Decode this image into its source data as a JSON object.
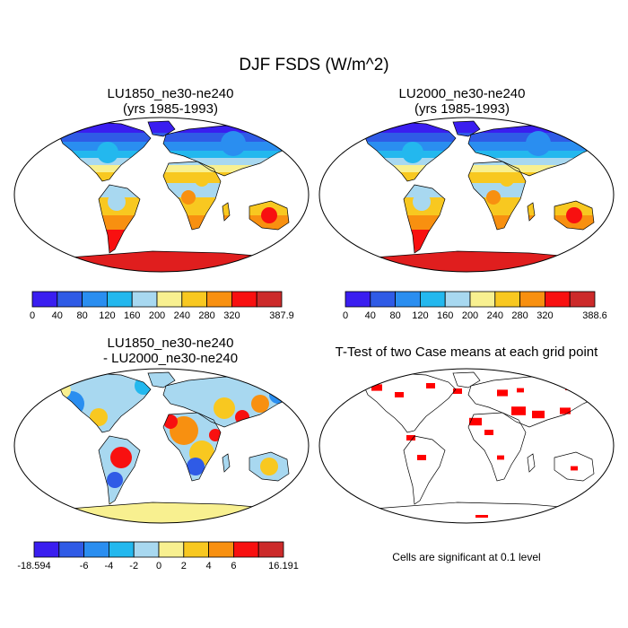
{
  "figure": {
    "title": "DJF FSDS (W/m^2)"
  },
  "panels": [
    {
      "id": "tl",
      "title": "LU1850_ne30-ne240\n(yrs 1985-1993)"
    },
    {
      "id": "tr",
      "title": "LU2000_ne30-ne240\n(yrs 1985-1993)"
    },
    {
      "id": "bl",
      "title": "LU1850_ne30-ne240\n- LU2000_ne30-ne240"
    },
    {
      "id": "br",
      "title": "T-Test of two Case means at each grid point"
    }
  ],
  "colorbars": [
    {
      "id": "cb1",
      "labels": [
        "0",
        "40",
        "80",
        "120",
        "160",
        "200",
        "240",
        "280",
        "320",
        "387.9"
      ],
      "colors": [
        "#3a1ef0",
        "#2f5be6",
        "#2a8ef0",
        "#23b8ee",
        "#a8d8f0",
        "#f8f090",
        "#f8c820",
        "#f89010",
        "#f81010",
        "#cc2a2a"
      ]
    },
    {
      "id": "cb2",
      "labels": [
        "0",
        "40",
        "80",
        "120",
        "160",
        "200",
        "240",
        "280",
        "320",
        "388.6"
      ],
      "colors": [
        "#3a1ef0",
        "#2f5be6",
        "#2a8ef0",
        "#23b8ee",
        "#a8d8f0",
        "#f8f090",
        "#f8c820",
        "#f89010",
        "#f81010",
        "#cc2a2a"
      ]
    },
    {
      "id": "cb3",
      "labels": [
        "-18.594",
        "-6",
        "-4",
        "-2",
        "0",
        "2",
        "4",
        "6",
        "16.191"
      ],
      "colors": [
        "#3a1ef0",
        "#2f5be6",
        "#2a8ef0",
        "#23b8ee",
        "#a8d8f0",
        "#f8f090",
        "#f8c820",
        "#f89010",
        "#f81010",
        "#cc2a2a"
      ]
    }
  ],
  "note": "Cells are significant at 0.1 level"
}
